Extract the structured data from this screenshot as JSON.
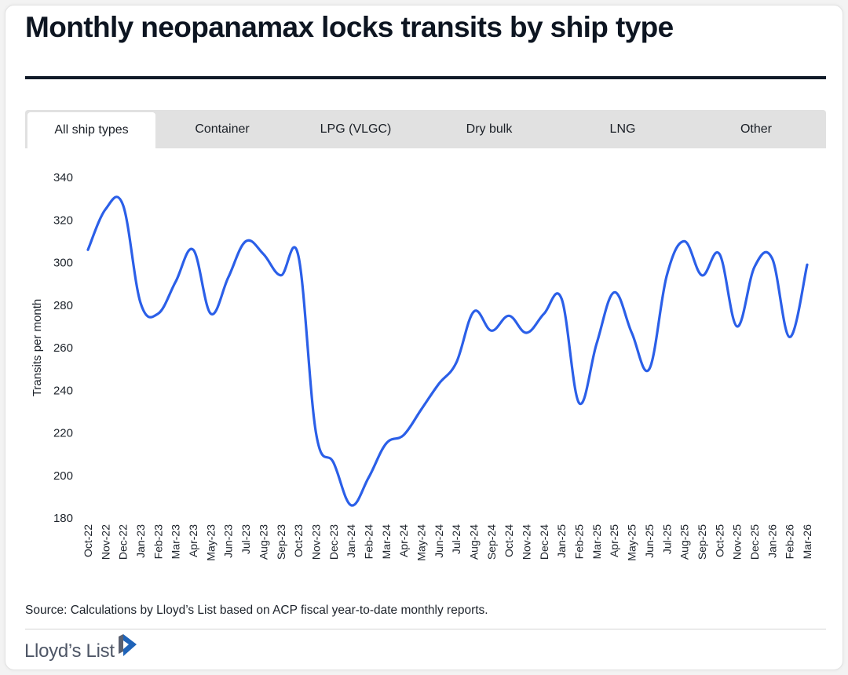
{
  "title": "Monthly neopanamax locks transits by ship type",
  "tabs": [
    {
      "label": "All ship types",
      "active": true
    },
    {
      "label": "Container",
      "active": false
    },
    {
      "label": "LPG (VLGC)",
      "active": false
    },
    {
      "label": "Dry bulk",
      "active": false
    },
    {
      "label": "LNG",
      "active": false
    },
    {
      "label": "Other",
      "active": false
    }
  ],
  "source": "Source: Calculations by Lloyd’s List based on ACP fiscal year-to-date monthly reports.",
  "logo": {
    "text": "Lloyd’s List",
    "icon": "play-chevron-icon"
  },
  "colors": {
    "line": "#2b5fe8",
    "title": "#0d1521",
    "logo_blue": "#1f63b8",
    "logo_gray": "#5a6070"
  },
  "chart_data": {
    "type": "line",
    "title": "Monthly neopanamax locks transits by ship type",
    "xlabel": "",
    "ylabel": "Transits per month",
    "ylim": [
      180,
      340
    ],
    "yticks": [
      340,
      320,
      300,
      280,
      260,
      240,
      220,
      200,
      180
    ],
    "grid": false,
    "legend": "none",
    "categories": [
      "Oct-22",
      "Nov-22",
      "Dec-22",
      "Jan-23",
      "Feb-23",
      "Mar-23",
      "Apr-23",
      "May-23",
      "Jun-23",
      "Jul-23",
      "Aug-23",
      "Sep-23",
      "Oct-23",
      "Nov-23",
      "Dec-23",
      "Jan-24",
      "Feb-24",
      "Mar-24",
      "Apr-24",
      "May-24",
      "Jun-24",
      "Jul-24",
      "Aug-24",
      "Sep-24",
      "Oct-24",
      "Nov-24",
      "Dec-24",
      "Jan-25",
      "Feb-25",
      "Mar-25",
      "Apr-25",
      "May-25",
      "Jun-25",
      "Jul-25",
      "Aug-25",
      "Sep-25",
      "Oct-25",
      "Nov-25",
      "Dec-25",
      "Jan-26",
      "Feb-26",
      "Mar-26"
    ],
    "series": [
      {
        "name": "All ship types",
        "values": [
          306,
          325,
          327,
          281,
          276,
          291,
          306,
          276,
          293,
          310,
          304,
          294,
          303,
          220,
          206,
          186,
          199,
          215,
          219,
          231,
          243,
          253,
          277,
          268,
          275,
          267,
          276,
          283,
          234,
          262,
          286,
          267,
          250,
          294,
          310,
          294,
          304,
          270,
          298,
          302,
          265,
          299
        ]
      }
    ]
  }
}
